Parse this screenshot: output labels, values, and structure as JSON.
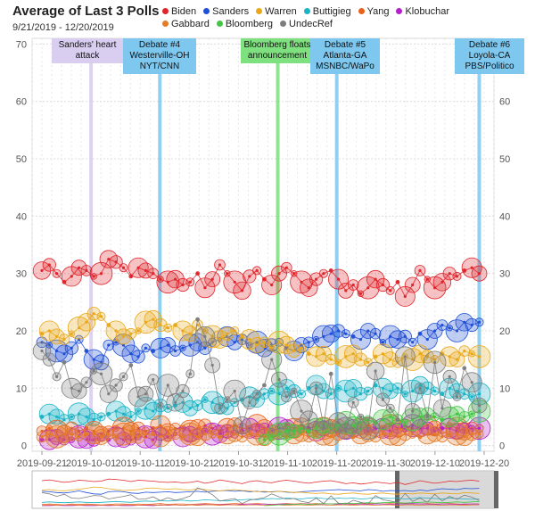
{
  "chart_data": {
    "type": "scatter",
    "title": "Average of Last 3 Polls",
    "subtitle": "9/21/2019 - 12/20/2019",
    "x_ticks": [
      "2019-09-21",
      "2019-10-01",
      "2019-10-11",
      "2019-10-21",
      "2019-10-31",
      "2019-11-10",
      "2019-11-20",
      "2019-11-30",
      "2019-12-10",
      "2019-12-20"
    ],
    "y_ticks": [
      0,
      10,
      20,
      30,
      40,
      50,
      60,
      70
    ],
    "xlim": [
      "2019-09-19",
      "2019-12-22"
    ],
    "ylim": [
      -1,
      71
    ],
    "grid": true,
    "legend_position": "top",
    "series": [
      {
        "name": "Biden",
        "color": "#e0242b",
        "values": [
          30.5,
          31.5,
          30.0,
          28.5,
          29.5,
          31.0,
          30.5,
          29.5,
          30.0,
          32.5,
          32.0,
          31.0,
          29.5,
          31.0,
          30.5,
          30.0,
          29.0,
          28.5,
          29.0,
          28.0,
          28.5,
          30.0,
          27.5,
          29.0,
          31.5,
          30.0,
          28.5,
          27.0,
          29.5,
          30.5,
          29.0,
          28.0,
          30.0,
          31.0,
          30.0,
          28.5,
          27.5,
          29.0,
          30.0,
          30.5,
          29.0,
          27.0,
          28.0,
          26.5,
          27.5,
          29.0,
          28.0,
          27.0,
          28.5,
          26.0,
          28.0,
          30.5,
          29.0,
          27.5,
          28.5,
          30.0,
          29.5,
          30.5,
          31.0,
          30.0
        ]
      },
      {
        "name": "Sanders",
        "color": "#1f4fd6",
        "values": [
          18.0,
          17.5,
          16.5,
          16.0,
          17.0,
          18.5,
          16.5,
          15.0,
          14.5,
          17.5,
          18.0,
          17.5,
          16.0,
          15.5,
          17.0,
          16.5,
          17.0,
          17.5,
          16.5,
          17.0,
          17.5,
          18.0,
          17.0,
          18.0,
          18.5,
          19.0,
          18.0,
          18.5,
          17.5,
          18.0,
          17.0,
          17.5,
          18.0,
          17.0,
          16.5,
          17.5,
          18.0,
          18.5,
          19.0,
          19.5,
          20.0,
          19.5,
          19.0,
          18.5,
          20.0,
          19.5,
          18.0,
          19.0,
          18.5,
          19.0,
          18.0,
          19.5,
          18.5,
          20.0,
          21.0,
          20.5,
          20.0,
          21.5,
          21.0,
          21.5
        ]
      },
      {
        "name": "Warren",
        "color": "#e9a81a",
        "values": [
          19.5,
          20.0,
          19.0,
          18.5,
          19.5,
          20.5,
          21.5,
          23.0,
          22.5,
          21.0,
          20.0,
          19.0,
          19.5,
          20.0,
          21.5,
          22.0,
          21.0,
          20.5,
          21.0,
          20.0,
          19.5,
          21.0,
          20.0,
          19.0,
          18.5,
          19.5,
          20.0,
          19.0,
          18.5,
          17.5,
          18.0,
          17.0,
          18.0,
          17.5,
          16.5,
          17.0,
          16.0,
          15.5,
          16.0,
          15.0,
          14.5,
          15.5,
          16.0,
          15.0,
          14.5,
          15.5,
          16.0,
          15.0,
          14.5,
          15.5,
          15.0,
          16.0,
          15.5,
          15.0,
          16.0,
          15.5,
          15.0,
          16.5,
          16.0,
          15.5
        ]
      },
      {
        "name": "Buttigieg",
        "color": "#1bb3c4",
        "values": [
          5.0,
          5.5,
          5.0,
          4.5,
          5.0,
          5.5,
          5.0,
          4.5,
          5.0,
          5.5,
          6.0,
          5.5,
          5.0,
          6.0,
          6.5,
          6.0,
          7.0,
          6.5,
          7.0,
          7.5,
          6.5,
          7.0,
          8.0,
          7.5,
          7.0,
          6.5,
          7.5,
          8.0,
          8.5,
          8.0,
          9.0,
          9.5,
          9.0,
          10.0,
          9.5,
          9.0,
          10.0,
          10.5,
          9.5,
          9.0,
          10.0,
          9.5,
          10.0,
          9.0,
          9.5,
          10.5,
          10.0,
          9.5,
          10.0,
          9.0,
          9.5,
          10.5,
          10.0,
          9.5,
          9.0,
          10.0,
          9.5,
          9.0,
          8.5,
          9.0
        ]
      },
      {
        "name": "Yang",
        "color": "#e8611a",
        "values": [
          2.5,
          3.0,
          2.5,
          2.0,
          3.0,
          2.5,
          3.0,
          2.5,
          2.0,
          2.5,
          3.0,
          3.0,
          2.5,
          3.0,
          2.5,
          3.0,
          3.5,
          2.5,
          3.0,
          3.0,
          2.5,
          3.0,
          3.5,
          3.0,
          2.5,
          3.0,
          3.5,
          3.0,
          3.0,
          3.5,
          3.0,
          2.5,
          3.0,
          3.5,
          3.0,
          3.5,
          3.0,
          3.5,
          3.0,
          3.0,
          3.5,
          3.0,
          2.5,
          3.0,
          3.5,
          3.0,
          3.0,
          3.5,
          3.0,
          3.5,
          3.0,
          3.0,
          3.5,
          3.0,
          3.0,
          3.5,
          3.0,
          2.5,
          3.0,
          3.0
        ]
      },
      {
        "name": "Klobuchar",
        "color": "#b420c9",
        "values": [
          1.0,
          1.0,
          1.5,
          1.0,
          1.0,
          1.5,
          1.0,
          1.0,
          1.5,
          1.0,
          1.5,
          1.0,
          1.0,
          1.5,
          1.5,
          1.0,
          2.0,
          1.5,
          2.0,
          1.5,
          2.0,
          2.0,
          2.5,
          2.0,
          2.0,
          2.5,
          2.0,
          2.5,
          3.0,
          2.5,
          3.0,
          2.5,
          3.0,
          3.0,
          2.5,
          3.0,
          3.0,
          2.5,
          3.0,
          3.0,
          2.5,
          3.0,
          3.0,
          3.0,
          2.5,
          3.0,
          3.0,
          2.5,
          3.0,
          3.0,
          3.5,
          3.0,
          3.0,
          2.5,
          3.0,
          3.0,
          2.5,
          3.0,
          3.0,
          3.0
        ]
      },
      {
        "name": "Gabbard",
        "color": "#e37b28",
        "values": [
          1.5,
          2.0,
          1.5,
          2.0,
          2.0,
          1.5,
          2.0,
          2.0,
          1.5,
          2.0,
          1.5,
          2.0,
          2.0,
          1.5,
          2.0,
          2.0,
          1.5,
          2.0,
          2.0,
          1.5,
          2.0,
          1.5,
          2.0,
          2.0,
          1.5,
          2.0,
          2.0,
          1.5,
          2.0,
          2.0,
          1.5,
          2.0,
          2.0,
          1.5,
          2.0,
          2.0,
          1.5,
          2.0,
          2.0,
          1.5,
          2.0,
          2.0,
          1.5,
          2.0,
          2.0,
          1.5,
          2.0,
          2.0,
          1.5,
          2.0,
          2.0,
          1.5,
          2.0,
          2.0,
          1.5,
          2.0,
          2.0,
          1.5,
          2.0,
          2.0
        ]
      },
      {
        "name": "Bloomberg",
        "color": "#43c645",
        "values": [
          null,
          null,
          null,
          null,
          null,
          null,
          null,
          null,
          null,
          null,
          null,
          null,
          null,
          null,
          null,
          null,
          null,
          null,
          null,
          null,
          null,
          null,
          null,
          null,
          null,
          null,
          null,
          null,
          null,
          null,
          1.0,
          1.5,
          2.0,
          2.5,
          2.5,
          3.0,
          2.5,
          3.0,
          3.5,
          3.0,
          3.5,
          4.0,
          3.5,
          4.0,
          4.5,
          4.0,
          4.5,
          5.0,
          4.5,
          4.0,
          4.5,
          5.0,
          5.5,
          5.0,
          4.5,
          5.0,
          5.5,
          5.0,
          5.5,
          6.0
        ]
      },
      {
        "name": "UndecRef",
        "color": "#7d7d7d",
        "values": [
          16.5,
          15.0,
          12.0,
          14.5,
          10.0,
          9.5,
          11.0,
          13.0,
          12.5,
          9.0,
          10.5,
          12.0,
          14.0,
          8.5,
          9.0,
          11.5,
          7.0,
          10.5,
          7.5,
          9.5,
          12.5,
          22.0,
          19.0,
          14.0,
          6.5,
          8.0,
          9.5,
          3.5,
          7.5,
          9.0,
          10.5,
          15.0,
          11.5,
          8.5,
          9.5,
          6.0,
          4.5,
          10.0,
          3.5,
          12.5,
          4.0,
          2.5,
          7.5,
          5.0,
          3.0,
          13.0,
          8.0,
          6.5,
          4.5,
          15.5,
          6.0,
          10.0,
          5.0,
          14.5,
          6.5,
          12.0,
          8.5,
          13.5,
          11.0,
          7.0
        ]
      }
    ],
    "annotations": [
      {
        "label": "Sanders' heart attack",
        "date": "2019-10-01",
        "color": "#d9cdf0"
      },
      {
        "label": "Debate #4 Westerville-OH NYT/CNN",
        "date": "2019-10-15",
        "color": "#7ec8f0"
      },
      {
        "label": "Bloomberg floats announcement",
        "date": "2019-11-08",
        "color": "#7ee07e"
      },
      {
        "label": "Debate #5 Atlanta-GA MSNBC/WaPo",
        "date": "2019-11-20",
        "color": "#7ec8f0"
      },
      {
        "label": "Debate #6 Loyola-CA PBS/Politico",
        "date": "2019-12-19",
        "color": "#7ec8f0"
      }
    ]
  }
}
